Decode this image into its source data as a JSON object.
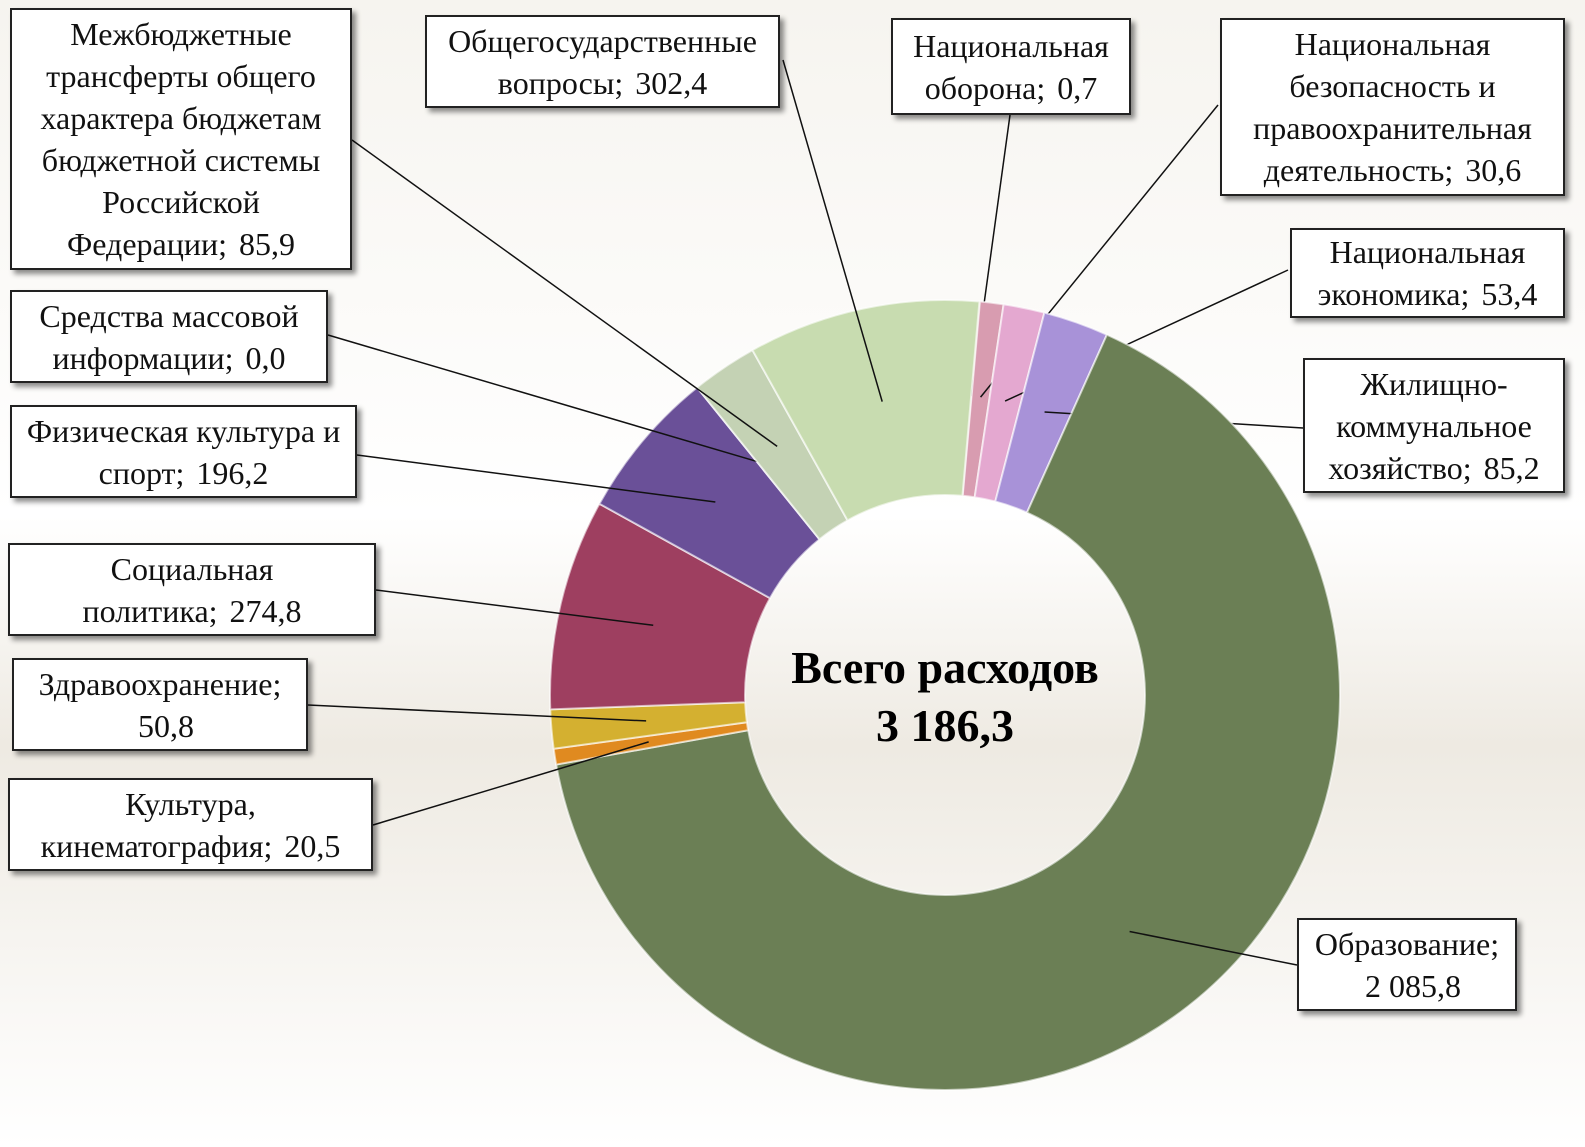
{
  "chart_data": {
    "type": "donut",
    "categories": [
      "Национальная оборона;",
      "Национальная безопасность и правоохранительная деятельность;",
      "Национальная экономика;",
      "Жилищно-коммунальное хозяйство;",
      "Образование;",
      "Культура, кинематография;",
      "Здравоохранение;",
      "Социальная политика;",
      "Физическая культура и спорт;",
      "Средства массовой информации;",
      "Межбюджетные трансферты общего характера бюджетам бюджетной системы Российской Федерации;",
      "Общегосударственные вопросы;"
    ],
    "values": [
      0.7,
      30.6,
      53.4,
      85.2,
      2085.8,
      20.5,
      50.8,
      274.8,
      196.2,
      0.0,
      85.9,
      302.4
    ],
    "value_labels": [
      "0,7",
      "30,6",
      "53,4",
      "85,2",
      "2 085,8",
      "20,5",
      "50,8",
      "274,8",
      "196,2",
      "0,0",
      "85,9",
      "302,4"
    ],
    "colors": [
      "#e6b820",
      "#d89cb0",
      "#e4a8d0",
      "#a892d8",
      "#6b7f55",
      "#e08a20",
      "#d4b030",
      "#9e3f60",
      "#6a5098",
      "#7060a0",
      "#c4d2b4",
      "#c8dcb0"
    ],
    "center_title": "Всего расходов",
    "total": {
      "value": 3186.3,
      "label": "3 186,3"
    }
  }
}
